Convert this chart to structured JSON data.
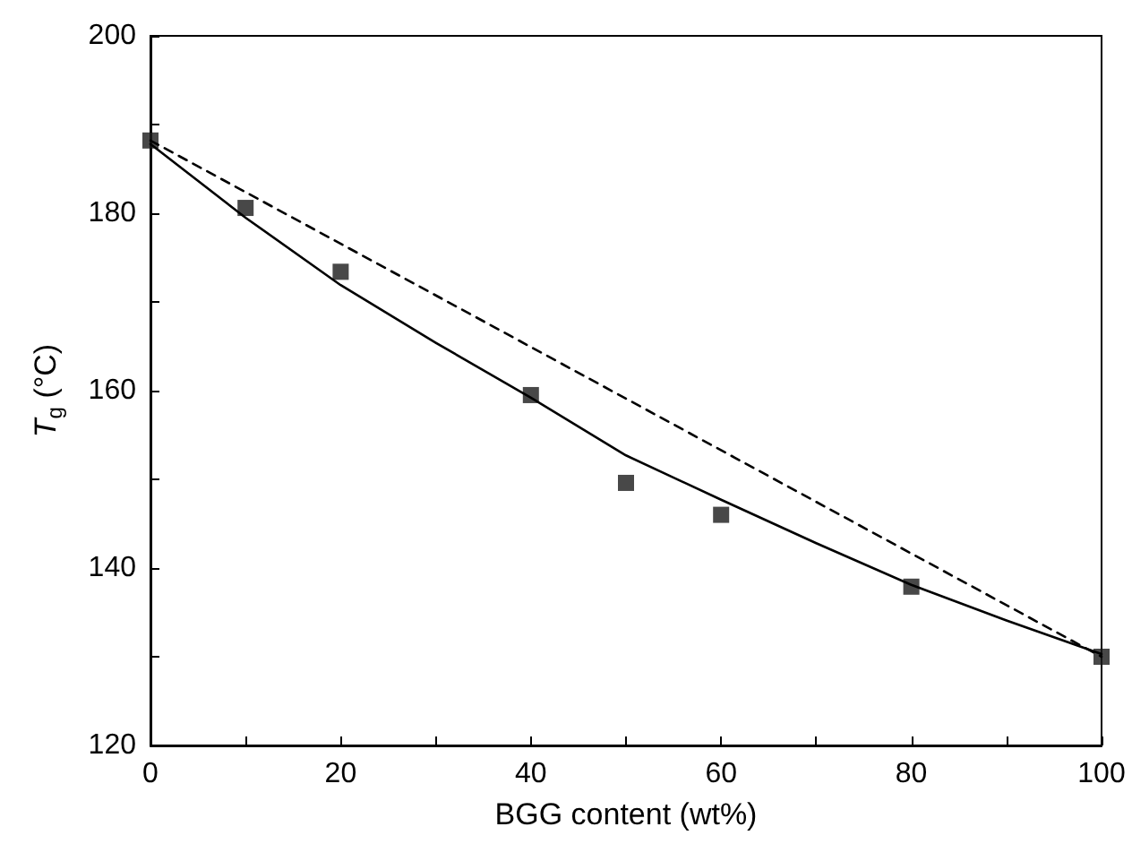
{
  "chart_data": {
    "type": "scatter",
    "xlabel": "BGG content (wt%)",
    "ylabel": "T$_{g}$ (°C)",
    "xlim": [
      0,
      100
    ],
    "ylim": [
      120,
      200
    ],
    "xticks": [
      0,
      {
        "value": 10,
        "label": null
      },
      20,
      {
        "value": 30,
        "label": null
      },
      40,
      {
        "value": 50,
        "label": null
      },
      60,
      {
        "value": 70,
        "label": null
      },
      80,
      {
        "value": 90,
        "label": null
      },
      100
    ],
    "yticks": [
      120,
      {
        "value": 130,
        "label": null
      },
      140,
      {
        "value": 150,
        "label": null
      },
      160,
      {
        "value": 170,
        "label": null
      },
      180,
      {
        "value": 190,
        "label": null
      },
      200
    ],
    "grid": false,
    "series": [
      {
        "type": "line",
        "color": "#000000",
        "marker": "none",
        "line_style": "solid",
        "x": [
          0,
          10,
          20,
          30,
          40,
          50,
          60,
          70,
          80,
          90,
          100
        ],
        "values": [
          187.8,
          179.5,
          171.9,
          165.4,
          159.2,
          152.7,
          147.7,
          142.8,
          138.1,
          134.1,
          130.3
        ]
      },
      {
        "type": "line",
        "color": "#000000",
        "marker": "none",
        "line_style": "dashed",
        "x": [
          0,
          100
        ],
        "values": [
          188.2,
          130.0
        ]
      },
      {
        "type": "scatter",
        "color": "#1a1a1a",
        "marker": "square",
        "x": [
          0,
          10,
          20,
          40,
          50,
          60,
          80,
          100
        ],
        "values": [
          188.2,
          180.6,
          173.4,
          159.5,
          149.6,
          146.0,
          137.9,
          130.0
        ]
      }
    ]
  }
}
